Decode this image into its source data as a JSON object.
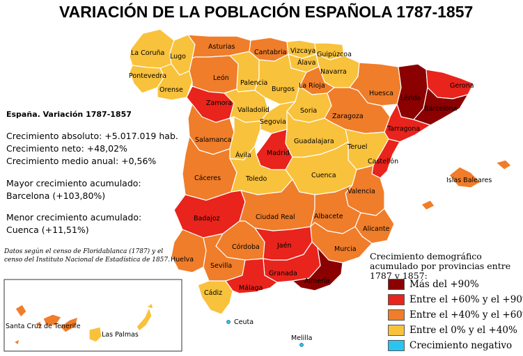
{
  "title": "VARIACIÓN DE LA POBLACIÓN ESPAÑOLA 1787-1857",
  "stats": {
    "heading": "España. Variación 1787-1857",
    "absolute": "Crecimiento absoluto: +5.017.019 hab.",
    "net": "Crecimiento neto: +48,02%",
    "annual": "Crecimiento medio anual: +0,56%",
    "max_label": "Mayor crecimiento acumulado:",
    "max_value": "Barcelona (+103,80%)",
    "min_label": "Menor crecimiento acumulado:",
    "min_value": "Cuenca (+11,51%)"
  },
  "source_note": "Datos según el censo de Floridablanca (1787) y el censo del Instituto Nacional de Estadística de 1857.",
  "legend": {
    "title": "Crecimiento demográfico acumulado por provincias entre 1787 y 1857:",
    "items": [
      {
        "label": "Más del +90%",
        "color": "#8B0000"
      },
      {
        "label": "Entre el +60% y el +90%",
        "color": "#E8241C"
      },
      {
        "label": "Entre el +40% y el +60%",
        "color": "#F07D2A"
      },
      {
        "label": "Entre el 0% y el +40%",
        "color": "#F9C23C"
      },
      {
        "label": "Crecimiento negativo",
        "color": "#29C5F0"
      }
    ]
  },
  "provinces": [
    {
      "name": "La Coruña",
      "category": 3
    },
    {
      "name": "Lugo",
      "category": 3
    },
    {
      "name": "Pontevedra",
      "category": 3
    },
    {
      "name": "Orense",
      "category": 3
    },
    {
      "name": "Asturias",
      "category": 2
    },
    {
      "name": "Cantabria",
      "category": 2
    },
    {
      "name": "Vizcaya",
      "category": 3
    },
    {
      "name": "Guipúzcoa",
      "category": 3
    },
    {
      "name": "Álava",
      "category": 3
    },
    {
      "name": "Navarra",
      "category": 3
    },
    {
      "name": "León",
      "category": 2
    },
    {
      "name": "Palencia",
      "category": 3
    },
    {
      "name": "Burgos",
      "category": 3
    },
    {
      "name": "La Rioja",
      "category": 2
    },
    {
      "name": "Huesca",
      "category": 2
    },
    {
      "name": "Lérida",
      "category": 0
    },
    {
      "name": "Gerona",
      "category": 1
    },
    {
      "name": "Barcelona",
      "category": 0
    },
    {
      "name": "Zamora",
      "category": 1
    },
    {
      "name": "Valladolid",
      "category": 3
    },
    {
      "name": "Soria",
      "category": 3
    },
    {
      "name": "Zaragoza",
      "category": 2
    },
    {
      "name": "Tarragona",
      "category": 1
    },
    {
      "name": "Segovia",
      "category": 3
    },
    {
      "name": "Salamanca",
      "category": 2
    },
    {
      "name": "Ávila",
      "category": 3
    },
    {
      "name": "Madrid",
      "category": 1
    },
    {
      "name": "Guadalajara",
      "category": 3
    },
    {
      "name": "Teruel",
      "category": 3
    },
    {
      "name": "Castellón",
      "category": 1
    },
    {
      "name": "Cáceres",
      "category": 2
    },
    {
      "name": "Toledo",
      "category": 3
    },
    {
      "name": "Cuenca",
      "category": 3
    },
    {
      "name": "Valencia",
      "category": 2
    },
    {
      "name": "Islas Baleares",
      "category": 2
    },
    {
      "name": "Badajoz",
      "category": 1
    },
    {
      "name": "Ciudad Real",
      "category": 2
    },
    {
      "name": "Albacete",
      "category": 2
    },
    {
      "name": "Alicante",
      "category": 2
    },
    {
      "name": "Córdoba",
      "category": 2
    },
    {
      "name": "Jaén",
      "category": 1
    },
    {
      "name": "Murcia",
      "category": 2
    },
    {
      "name": "Huelva",
      "category": 2
    },
    {
      "name": "Sevilla",
      "category": 2
    },
    {
      "name": "Granada",
      "category": 1
    },
    {
      "name": "Almería",
      "category": 0
    },
    {
      "name": "Cádiz",
      "category": 3
    },
    {
      "name": "Málaga",
      "category": 1
    },
    {
      "name": "Santa Cruz de Tenerife",
      "category": 2
    },
    {
      "name": "Las Palmas",
      "category": 3
    }
  ],
  "cities": [
    "Ceuta",
    "Melilla"
  ]
}
